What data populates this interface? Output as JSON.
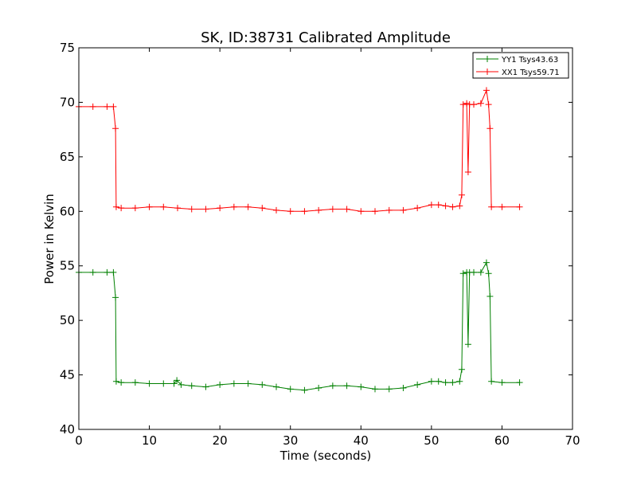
{
  "chart_data": {
    "type": "line",
    "title": "SK, ID:38731 Calibrated Amplitude",
    "xlabel": "Time (seconds)",
    "ylabel": "Power in Kelvin",
    "xlim": [
      0,
      70
    ],
    "ylim": [
      40,
      75
    ],
    "xticks": [
      0,
      10,
      20,
      30,
      40,
      50,
      60,
      70
    ],
    "yticks": [
      40,
      45,
      50,
      55,
      60,
      65,
      70,
      75
    ],
    "grid": false,
    "legend_position": "top-right",
    "marker": "+",
    "series": [
      {
        "name": "YY1 Tsys43.63",
        "color": "#008000",
        "x": [
          0,
          2,
          4,
          4.9,
          5.2,
          5.3,
          6,
          8,
          10,
          12,
          13.5,
          13.9,
          14.5,
          16,
          18,
          20,
          22,
          24,
          26,
          28,
          30,
          32,
          34,
          36,
          38,
          40,
          42,
          44,
          46,
          48,
          50,
          51,
          52,
          53,
          54,
          54.3,
          54.5,
          55,
          55.2,
          55.4,
          56,
          57,
          57.8,
          58.1,
          58.3,
          58.5,
          60,
          62.5
        ],
        "y": [
          54.4,
          54.4,
          54.4,
          54.4,
          52.1,
          44.4,
          44.3,
          44.3,
          44.2,
          44.2,
          44.2,
          44.5,
          44.1,
          44.0,
          43.9,
          44.1,
          44.2,
          44.2,
          44.1,
          43.9,
          43.7,
          43.6,
          43.8,
          44.0,
          44.0,
          43.9,
          43.7,
          43.7,
          43.8,
          44.1,
          44.4,
          44.4,
          44.3,
          44.3,
          44.4,
          45.5,
          54.3,
          54.4,
          47.8,
          54.4,
          54.4,
          54.4,
          55.3,
          54.3,
          52.2,
          44.4,
          44.3,
          44.3
        ]
      },
      {
        "name": "XX1 Tsys59.71",
        "color": "#ff0000",
        "x": [
          0,
          2,
          4,
          4.9,
          5.2,
          5.3,
          6,
          8,
          10,
          12,
          14,
          16,
          18,
          20,
          22,
          24,
          26,
          28,
          30,
          32,
          34,
          36,
          38,
          40,
          42,
          44,
          46,
          48,
          50,
          51,
          52,
          53,
          54,
          54.3,
          54.5,
          55,
          55.2,
          55.4,
          56,
          57,
          57.8,
          58.1,
          58.3,
          58.5,
          60,
          62.5
        ],
        "y": [
          69.6,
          69.6,
          69.6,
          69.6,
          67.6,
          60.4,
          60.3,
          60.3,
          60.4,
          60.4,
          60.3,
          60.2,
          60.2,
          60.3,
          60.4,
          60.4,
          60.3,
          60.1,
          60.0,
          60.0,
          60.1,
          60.2,
          60.2,
          60.0,
          60.0,
          60.1,
          60.1,
          60.3,
          60.6,
          60.6,
          60.5,
          60.4,
          60.5,
          61.5,
          69.8,
          69.9,
          63.6,
          69.8,
          69.8,
          69.9,
          71.1,
          69.8,
          67.6,
          60.4,
          60.4,
          60.4
        ]
      }
    ]
  }
}
